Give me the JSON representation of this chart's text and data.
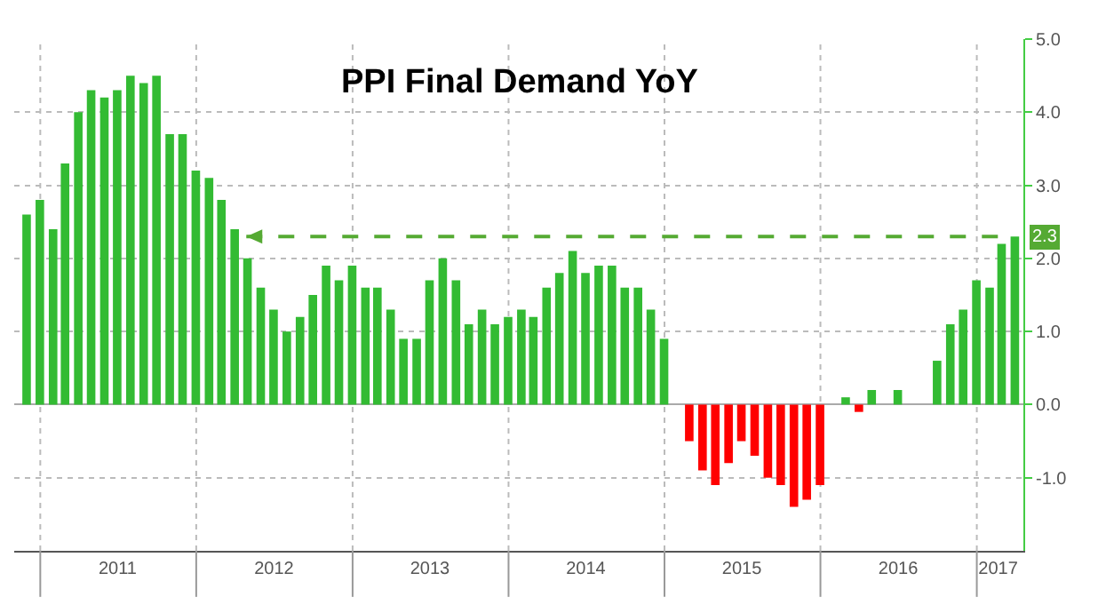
{
  "chart_data": {
    "type": "bar",
    "title": "PPI Final Demand YoY",
    "x": [
      "2010-11-30",
      "2010-12-31",
      "2011-01-31",
      "2011-02-28",
      "2011-03-31",
      "2011-04-30",
      "2011-05-31",
      "2011-06-30",
      "2011-07-31",
      "2011-08-31",
      "2011-09-30",
      "2011-10-31",
      "2011-11-30",
      "2011-12-31",
      "2012-01-31",
      "2012-02-29",
      "2012-03-31",
      "2012-04-30",
      "2012-05-31",
      "2012-06-30",
      "2012-07-31",
      "2012-08-31",
      "2012-09-30",
      "2012-10-31",
      "2012-11-30",
      "2012-12-31",
      "2013-01-31",
      "2013-02-28",
      "2013-03-31",
      "2013-04-30",
      "2013-05-31",
      "2013-06-30",
      "2013-07-31",
      "2013-08-31",
      "2013-09-30",
      "2013-10-31",
      "2013-11-30",
      "2013-12-31",
      "2014-01-31",
      "2014-02-28",
      "2014-03-31",
      "2014-04-30",
      "2014-05-31",
      "2014-06-30",
      "2014-07-31",
      "2014-08-31",
      "2014-09-30",
      "2014-10-31",
      "2014-11-30",
      "2014-12-31",
      "2015-01-31",
      "2015-02-28",
      "2015-03-31",
      "2015-04-30",
      "2015-05-31",
      "2015-06-30",
      "2015-07-31",
      "2015-08-31",
      "2015-09-30",
      "2015-10-31",
      "2015-11-30",
      "2015-12-31",
      "2016-01-31",
      "2016-02-29",
      "2016-03-31",
      "2016-04-30",
      "2016-05-31",
      "2016-06-30",
      "2016-07-31",
      "2016-08-31",
      "2016-09-30",
      "2016-10-31",
      "2016-11-30",
      "2016-12-31",
      "2017-01-31",
      "2017-02-28",
      "2017-03-31"
    ],
    "values": [
      2.6,
      2.8,
      2.4,
      3.3,
      4.0,
      4.3,
      4.2,
      4.3,
      4.5,
      4.4,
      4.5,
      3.7,
      3.7,
      3.2,
      3.1,
      2.8,
      2.4,
      2.0,
      1.6,
      1.3,
      1.0,
      1.2,
      1.5,
      1.9,
      1.7,
      1.9,
      1.6,
      1.6,
      1.3,
      0.9,
      0.9,
      1.7,
      2.0,
      1.7,
      1.1,
      1.3,
      1.1,
      1.2,
      1.3,
      1.2,
      1.6,
      1.8,
      2.1,
      1.8,
      1.9,
      1.9,
      1.6,
      1.6,
      1.3,
      0.9,
      0.0,
      -0.5,
      -0.9,
      -1.1,
      -0.8,
      -0.5,
      -0.7,
      -1.0,
      -1.1,
      -1.4,
      -1.3,
      -1.1,
      0.0,
      0.1,
      -0.1,
      0.2,
      0.0,
      0.2,
      0.0,
      0.0,
      0.6,
      1.1,
      1.3,
      1.7,
      1.6,
      2.2,
      2.3
    ],
    "colors": [
      "#33bb33",
      "#33bb33",
      "#33bb33",
      "#33bb33",
      "#33bb33",
      "#33bb33",
      "#33bb33",
      "#33bb33",
      "#33bb33",
      "#33bb33",
      "#33bb33",
      "#33bb33",
      "#33bb33",
      "#33bb33",
      "#33bb33",
      "#33bb33",
      "#33bb33",
      "#33bb33",
      "#33bb33",
      "#33bb33",
      "#33bb33",
      "#33bb33",
      "#33bb33",
      "#33bb33",
      "#33bb33",
      "#33bb33",
      "#33bb33",
      "#33bb33",
      "#33bb33",
      "#33bb33",
      "#33bb33",
      "#33bb33",
      "#33bb33",
      "#33bb33",
      "#33bb33",
      "#33bb33",
      "#33bb33",
      "#33bb33",
      "#33bb33",
      "#33bb33",
      "#33bb33",
      "#33bb33",
      "#33bb33",
      "#33bb33",
      "#33bb33",
      "#33bb33",
      "#33bb33",
      "#33bb33",
      "#33bb33",
      "#33bb33",
      "#ff0000",
      "#ff0000",
      "#ff0000",
      "#ff0000",
      "#ff0000",
      "#ff0000",
      "#ff0000",
      "#ff0000",
      "#ff0000",
      "#ff0000",
      "#ff0000",
      "#ff0000",
      "#ff0000",
      "#33bb33",
      "#ff0000",
      "#33bb33",
      "#33bb33",
      "#33bb33",
      "#33bb33",
      "#33bb33",
      "#33bb33",
      "#33bb33",
      "#33bb33",
      "#33bb33",
      "#33bb33",
      "#33bb33",
      "#33bb33"
    ],
    "xlim": [
      "2010-11-01",
      "2017-04-20"
    ],
    "xticks": [
      {
        "value": "2011-01-01",
        "label": null
      },
      {
        "value": "2011-07-01",
        "label": "2011"
      },
      {
        "value": "2012-01-01",
        "label": null
      },
      {
        "value": "2012-07-01",
        "label": "2012"
      },
      {
        "value": "2013-01-01",
        "label": null
      },
      {
        "value": "2013-07-01",
        "label": "2013"
      },
      {
        "value": "2014-01-01",
        "label": null
      },
      {
        "value": "2014-07-01",
        "label": "2014"
      },
      {
        "value": "2015-01-01",
        "label": null
      },
      {
        "value": "2015-07-01",
        "label": "2015"
      },
      {
        "value": "2016-01-01",
        "label": null
      },
      {
        "value": "2016-07-01",
        "label": "2016"
      },
      {
        "value": "2017-01-01",
        "label": null
      },
      {
        "value": "2017-02-20",
        "label": "2017"
      }
    ],
    "ylim": [
      -2,
      5
    ],
    "yticks": [
      {
        "value": -1,
        "label": "-1.0"
      },
      {
        "value": 0,
        "label": "0.0"
      },
      {
        "value": 1,
        "label": "1.0"
      },
      {
        "value": 2,
        "label": "2.0"
      },
      {
        "value": 3,
        "label": "3.0"
      },
      {
        "value": 4,
        "label": "4.0"
      },
      {
        "value": 5,
        "label": "5.0"
      }
    ],
    "ref_lines": [
      {
        "axis": "y",
        "value": 2.3,
        "label": "2.3",
        "color": "#55aa33",
        "line_style": "dashed"
      }
    ],
    "grid": true
  }
}
